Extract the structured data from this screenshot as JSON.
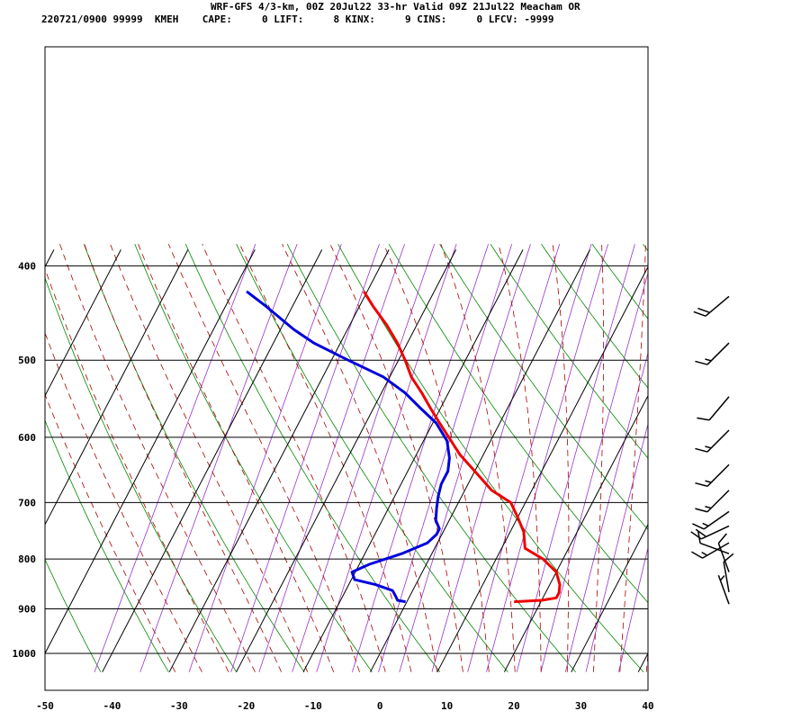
{
  "header": {
    "line1": "WRF-GFS 4/3-km, 00Z 20Jul22 33-hr Valid 09Z 21Jul22 Meacham OR",
    "line2": "220721/0900 99999  KMEH    CAPE:     0 LIFT:     8 KINX:     9 CINS:     0 LFCV: -9999"
  },
  "chart_data": {
    "type": "line",
    "subtype": "skew-T log-P sounding",
    "y_scale": "log",
    "y_ticks": [
      400,
      500,
      600,
      700,
      800,
      900,
      1000
    ],
    "x_ticks": [
      -50,
      -40,
      -30,
      -20,
      -10,
      0,
      10,
      20,
      30,
      40
    ],
    "ylim": [
      1040,
      400
    ],
    "xlim": [
      -50,
      40
    ],
    "grid": true,
    "colors": {
      "temperature": "#ee0000",
      "dewpoint": "#0000dd",
      "dry_adiabat": "#008800",
      "moist_adiabat": "#aa0000",
      "mixing_ratio": "#9933cc",
      "grid": "#000000",
      "wind_barb": "#000000"
    },
    "series": [
      {
        "key": "temperature",
        "points": [
          [
            885,
            16.0
          ],
          [
            882,
            20.0
          ],
          [
            877,
            22.0
          ],
          [
            866,
            22.0
          ],
          [
            850,
            21.5
          ],
          [
            825,
            20.0
          ],
          [
            800,
            17.0
          ],
          [
            780,
            13.5
          ],
          [
            750,
            12.0
          ],
          [
            725,
            10.0
          ],
          [
            700,
            7.8
          ],
          [
            680,
            4.0
          ],
          [
            650,
            0.0
          ],
          [
            625,
            -3.5
          ],
          [
            600,
            -6.5
          ],
          [
            580,
            -9.0
          ],
          [
            560,
            -11.5
          ],
          [
            540,
            -14.0
          ],
          [
            520,
            -16.8
          ],
          [
            500,
            -19.0
          ],
          [
            480,
            -21.5
          ],
          [
            460,
            -24.5
          ],
          [
            440,
            -28.0
          ],
          [
            425,
            -30.5
          ]
        ]
      },
      {
        "key": "dewpoint",
        "points": [
          [
            885,
            -0.2
          ],
          [
            882,
            -1.5
          ],
          [
            875,
            -2.0
          ],
          [
            862,
            -3.0
          ],
          [
            850,
            -6.0
          ],
          [
            840,
            -9.5
          ],
          [
            825,
            -10.5
          ],
          [
            810,
            -8.5
          ],
          [
            790,
            -4.5
          ],
          [
            770,
            -1.5
          ],
          [
            755,
            -0.8
          ],
          [
            745,
            -0.8
          ],
          [
            730,
            -2.0
          ],
          [
            710,
            -2.8
          ],
          [
            690,
            -3.5
          ],
          [
            670,
            -4.0
          ],
          [
            650,
            -4.0
          ],
          [
            630,
            -4.8
          ],
          [
            605,
            -6.5
          ],
          [
            580,
            -9.5
          ],
          [
            560,
            -13.0
          ],
          [
            540,
            -16.5
          ],
          [
            520,
            -21.0
          ],
          [
            500,
            -27.5
          ],
          [
            480,
            -34.0
          ],
          [
            465,
            -38.0
          ],
          [
            440,
            -44.0
          ],
          [
            425,
            -48.0
          ]
        ]
      }
    ],
    "wind_barbs": [
      {
        "p": 430,
        "direction": 230,
        "speed": 20
      },
      {
        "p": 480,
        "direction": 225,
        "speed": 15
      },
      {
        "p": 545,
        "direction": 220,
        "speed": 10
      },
      {
        "p": 590,
        "direction": 225,
        "speed": 15
      },
      {
        "p": 640,
        "direction": 225,
        "speed": 15
      },
      {
        "p": 680,
        "direction": 225,
        "speed": 15
      },
      {
        "p": 715,
        "direction": 235,
        "speed": 15
      },
      {
        "p": 740,
        "direction": 245,
        "speed": 20
      },
      {
        "p": 770,
        "direction": 240,
        "speed": 15
      },
      {
        "p": 790,
        "direction": 290,
        "speed": 10
      },
      {
        "p": 825,
        "direction": 340,
        "speed": 10
      },
      {
        "p": 865,
        "direction": 350,
        "speed": 10
      },
      {
        "p": 890,
        "direction": 340,
        "speed": 5
      }
    ]
  }
}
